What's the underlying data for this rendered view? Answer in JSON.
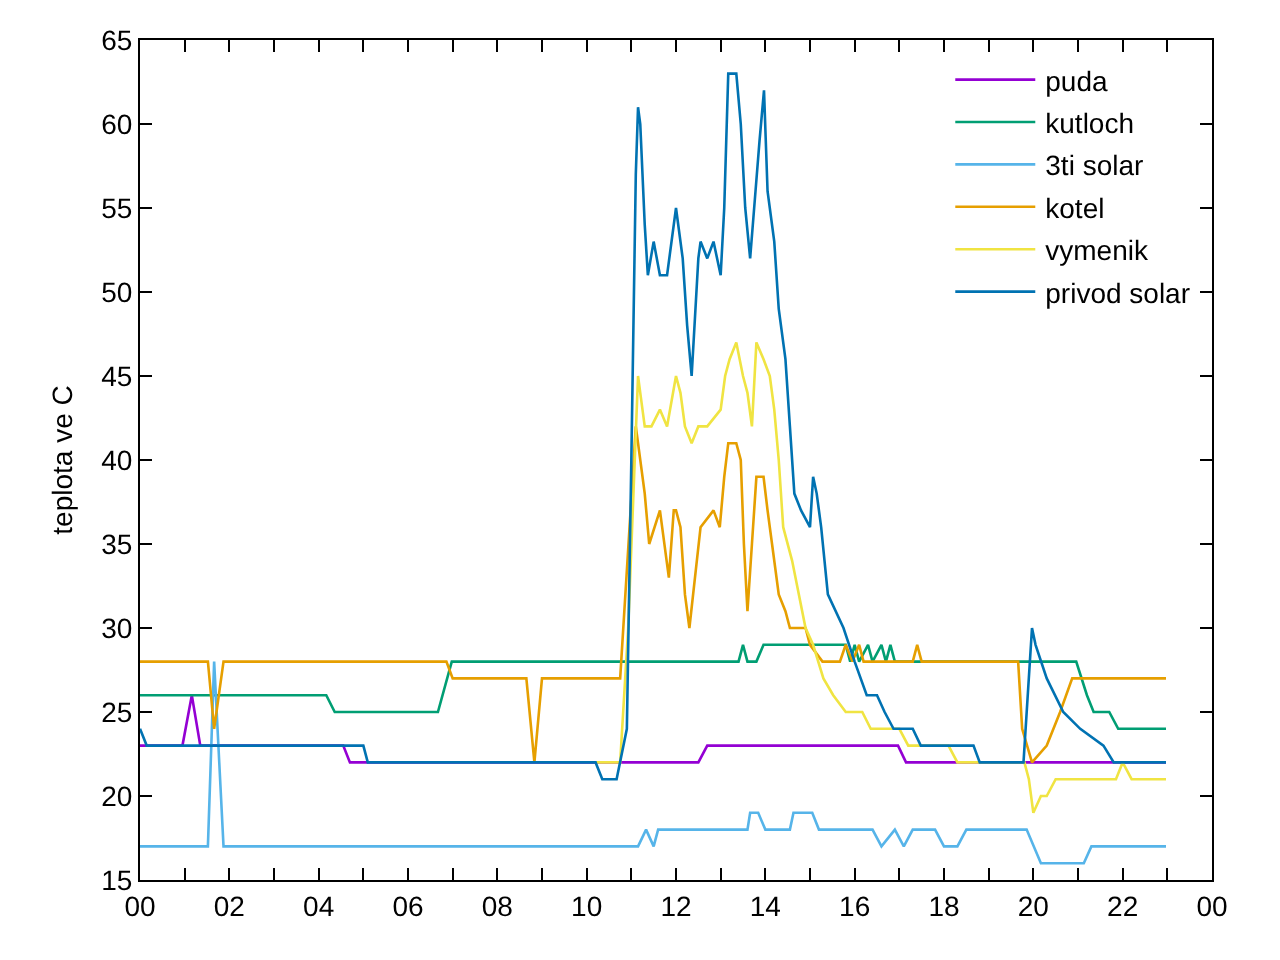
{
  "chart_data": {
    "type": "line",
    "ylabel": "teplota ve C",
    "xlim": [
      0,
      24
    ],
    "ylim": [
      15,
      65
    ],
    "xticks": [
      {
        "value": 0,
        "label": "00"
      },
      {
        "value": 1,
        "label": null
      },
      {
        "value": 2,
        "label": "02"
      },
      {
        "value": 3,
        "label": null
      },
      {
        "value": 4,
        "label": "04"
      },
      {
        "value": 5,
        "label": null
      },
      {
        "value": 6,
        "label": "06"
      },
      {
        "value": 7,
        "label": null
      },
      {
        "value": 8,
        "label": "08"
      },
      {
        "value": 9,
        "label": null
      },
      {
        "value": 10,
        "label": "10"
      },
      {
        "value": 11,
        "label": null
      },
      {
        "value": 12,
        "label": "12"
      },
      {
        "value": 13,
        "label": null
      },
      {
        "value": 14,
        "label": "14"
      },
      {
        "value": 15,
        "label": null
      },
      {
        "value": 16,
        "label": "16"
      },
      {
        "value": 17,
        "label": null
      },
      {
        "value": 18,
        "label": "18"
      },
      {
        "value": 19,
        "label": null
      },
      {
        "value": 20,
        "label": "20"
      },
      {
        "value": 21,
        "label": null
      },
      {
        "value": 22,
        "label": "22"
      },
      {
        "value": 23,
        "label": null
      },
      {
        "value": 24,
        "label": "00"
      }
    ],
    "yticks": [
      15,
      20,
      25,
      30,
      35,
      40,
      45,
      50,
      55,
      60,
      65
    ],
    "grid": false,
    "legend": "top right",
    "marker": "none",
    "line_style": "solid",
    "series": [
      {
        "name": "puda",
        "color": "#9400d3",
        "x": [
          0,
          0.95,
          1.16,
          1.35,
          4.55,
          4.7,
          12.5,
          12.7,
          16.97,
          17.15,
          22.97
        ],
        "values": [
          23,
          23,
          26,
          23,
          23,
          22,
          22,
          23,
          23,
          22,
          22
        ]
      },
      {
        "name": "kutloch",
        "color": "#009e73",
        "x": [
          0,
          4.17,
          4.36,
          6.67,
          6.98,
          13.4,
          13.5,
          13.6,
          13.8,
          13.96,
          15.8,
          15.9,
          16.0,
          16.1,
          16.3,
          16.4,
          16.6,
          16.7,
          16.8,
          16.9,
          17.5,
          20.96,
          21.2,
          21.35,
          21.7,
          21.9,
          22.97
        ],
        "values": [
          26,
          26,
          25,
          25,
          28,
          28,
          29,
          28,
          28,
          29,
          29,
          28,
          29,
          28,
          29,
          28,
          29,
          28,
          29,
          28,
          28,
          28,
          26,
          25,
          25,
          24,
          24
        ]
      },
      {
        "name": "3ti solar",
        "color": "#56b4e9",
        "x": [
          0,
          1.52,
          1.66,
          1.87,
          11.15,
          11.33,
          11.5,
          11.6,
          13.6,
          13.66,
          13.84,
          14.0,
          14.55,
          14.63,
          15.05,
          15.2,
          16.4,
          16.6,
          16.9,
          17.1,
          17.3,
          17.8,
          18.0,
          18.3,
          18.5,
          19.85,
          20.17,
          21.13,
          21.3,
          22.97
        ],
        "values": [
          17,
          17,
          28,
          17,
          17,
          18,
          17,
          18,
          18,
          19,
          19,
          18,
          18,
          19,
          19,
          18,
          18,
          17,
          18,
          17,
          18,
          18,
          17,
          17,
          18,
          18,
          16,
          16,
          17,
          17
        ]
      },
      {
        "name": "kotel",
        "color": "#e69f00",
        "x": [
          0,
          1.52,
          1.66,
          1.87,
          6.86,
          7.0,
          8.65,
          8.83,
          9.0,
          10.75,
          11.1,
          11.15,
          11.3,
          11.4,
          11.64,
          11.84,
          11.95,
          12.0,
          12.1,
          12.2,
          12.3,
          12.55,
          12.84,
          12.98,
          13.08,
          13.17,
          13.35,
          13.45,
          13.52,
          13.6,
          13.7,
          13.8,
          13.96,
          14.05,
          14.15,
          14.3,
          14.45,
          14.55,
          14.9,
          15.0,
          15.28,
          15.67,
          15.8,
          15.95,
          16.1,
          16.2,
          17.3,
          17.4,
          17.5,
          19.66,
          19.75,
          19.97,
          20.3,
          20.6,
          20.87,
          22.97
        ],
        "values": [
          28,
          28,
          24,
          28,
          28,
          27,
          27,
          22,
          27,
          27,
          42,
          41,
          38,
          35,
          37,
          33,
          37,
          37,
          36,
          32,
          30,
          36,
          37,
          36,
          39,
          41,
          41,
          40,
          35,
          31,
          35,
          39,
          39,
          37,
          35,
          32,
          31,
          30,
          30,
          29,
          28,
          28,
          29,
          28,
          29,
          28,
          28,
          29,
          28,
          28,
          24,
          22,
          23,
          25,
          27,
          27
        ]
      },
      {
        "name": "vymenik",
        "color": "#f0e442",
        "x": [
          10.2,
          10.75,
          10.93,
          11.15,
          11.2,
          11.3,
          11.45,
          11.64,
          11.8,
          12.0,
          12.1,
          12.2,
          12.35,
          12.5,
          12.7,
          13.0,
          13.1,
          13.2,
          13.35,
          13.5,
          13.6,
          13.7,
          13.8,
          13.96,
          14.1,
          14.2,
          14.3,
          14.4,
          14.6,
          14.9,
          15.07,
          15.3,
          15.52,
          15.8,
          16.17,
          16.36,
          17.0,
          17.2,
          18.1,
          18.3,
          19.8,
          19.9,
          20.0,
          20.17,
          20.3,
          20.5,
          21.85,
          22.0,
          22.2,
          22.97
        ],
        "values": [
          22,
          22,
          30,
          45,
          44,
          42,
          42,
          43,
          42,
          45,
          44,
          42,
          41,
          42,
          42,
          43,
          45,
          46,
          47,
          45,
          44,
          42,
          47,
          46,
          45,
          43,
          40,
          36,
          34,
          30,
          29,
          27,
          26,
          25,
          25,
          24,
          24,
          23,
          23,
          22,
          22,
          21,
          19,
          20,
          20,
          21,
          21,
          22,
          21,
          21
        ]
      },
      {
        "name": "privod solar",
        "color": "#0072b2",
        "x": [
          0,
          0.15,
          5.0,
          5.1,
          10.2,
          10.35,
          10.67,
          10.9,
          11.0,
          11.1,
          11.15,
          11.2,
          11.3,
          11.37,
          11.5,
          11.64,
          11.8,
          12.0,
          12.15,
          12.25,
          12.35,
          12.5,
          12.55,
          12.7,
          12.84,
          13.0,
          13.08,
          13.17,
          13.35,
          13.45,
          13.55,
          13.66,
          13.75,
          13.87,
          13.97,
          14.05,
          14.2,
          14.3,
          14.45,
          14.55,
          14.65,
          14.8,
          15.0,
          15.07,
          15.15,
          15.25,
          15.4,
          15.75,
          16.0,
          16.27,
          16.5,
          16.67,
          16.87,
          17.3,
          17.48,
          18.66,
          18.8,
          19.78,
          19.97,
          20.05,
          20.3,
          20.67,
          21.05,
          21.57,
          21.8,
          22.97
        ],
        "values": [
          24,
          23,
          23,
          22,
          22,
          21,
          21,
          24,
          40,
          57,
          61,
          60,
          54,
          51,
          53,
          51,
          51,
          55,
          52,
          48,
          45,
          52,
          53,
          52,
          53,
          51,
          55,
          63,
          63,
          60,
          55,
          52,
          55,
          59,
          62,
          56,
          53,
          49,
          46,
          42,
          38,
          37,
          36,
          39,
          38,
          36,
          32,
          30,
          28,
          26,
          26,
          25,
          24,
          24,
          23,
          23,
          22,
          22,
          30,
          29,
          27,
          25,
          24,
          23,
          22,
          22
        ]
      }
    ]
  }
}
